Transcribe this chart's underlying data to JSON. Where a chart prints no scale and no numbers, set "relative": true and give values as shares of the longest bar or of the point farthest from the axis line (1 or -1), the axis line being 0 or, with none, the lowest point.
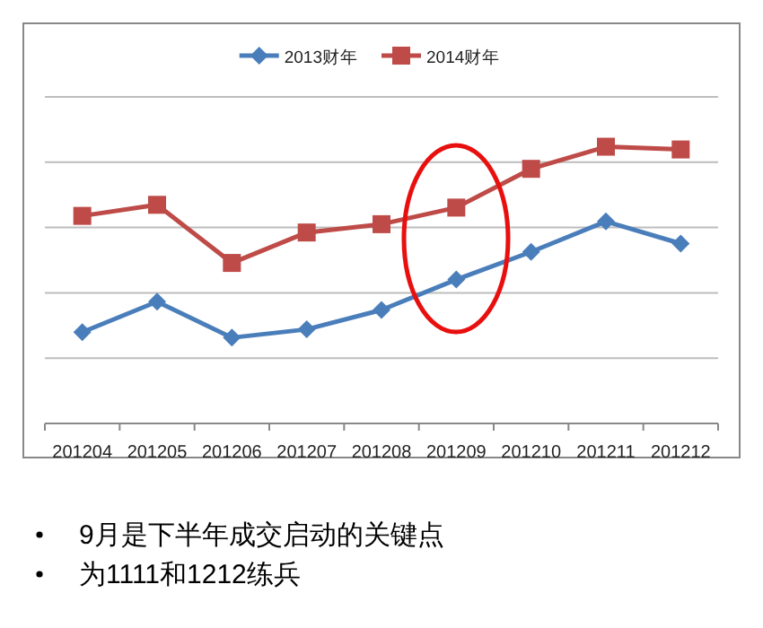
{
  "chart_data": {
    "type": "line",
    "relative": true,
    "categories": [
      "201204",
      "201205",
      "201206",
      "201207",
      "201208",
      "201209",
      "201210",
      "201211",
      "201212"
    ],
    "series": [
      {
        "name": "2013财年",
        "color": "#4a7ebb",
        "marker": "diamond",
        "values": [
          0.33,
          0.44,
          0.31,
          0.34,
          0.41,
          0.52,
          0.62,
          0.73,
          0.65
        ]
      },
      {
        "name": "2014财年",
        "color": "#be4b48",
        "marker": "square",
        "values": [
          0.75,
          0.79,
          0.58,
          0.69,
          0.72,
          0.78,
          0.92,
          1,
          0.99
        ]
      }
    ],
    "grid": true,
    "legend": "top",
    "line_style": "solid",
    "annotations": [
      "9月是下半年成交启动的关键点",
      "为1111和1212练兵"
    ]
  }
}
